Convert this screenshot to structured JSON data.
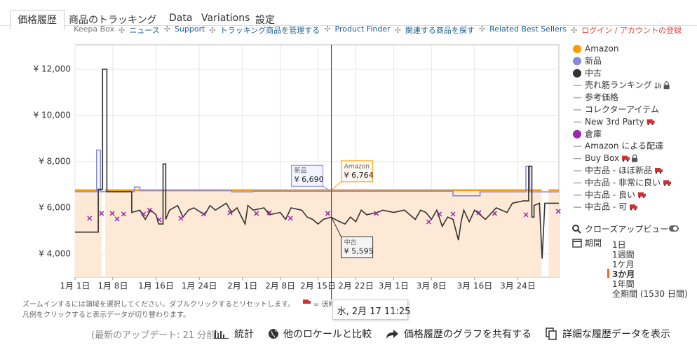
{
  "tabs": [
    "価格履歴",
    "商品のトラッキング",
    "Data",
    "Variations",
    "設定"
  ],
  "active_tab": 0,
  "nav_links": [
    "Keepa Box",
    "ニュース",
    "Support",
    "トラッキング商品を管理する",
    "Product Finder",
    "関連する商品を探す",
    "Related Best Sellers",
    "ログイン / アカウントの登録"
  ],
  "chart_data": {
    "type": "line",
    "xlim": [
      0,
      89.6
    ],
    "xticks": [
      {
        "value": 0,
        "label": "1月 1日"
      },
      {
        "value": 7,
        "label": "1月 8日"
      },
      {
        "value": 15,
        "label": "1月 16日"
      },
      {
        "value": 23,
        "label": "1月 24日"
      },
      {
        "value": 31,
        "label": "2月 1日"
      },
      {
        "value": 38,
        "label": "2月 8日"
      },
      {
        "value": 45,
        "label": "2月 15日"
      },
      {
        "value": 52,
        "label": "2月 22日"
      },
      {
        "value": 59,
        "label": "3月 1日"
      },
      {
        "value": 66,
        "label": "3月 8日"
      },
      {
        "value": 74,
        "label": "3月 16日"
      },
      {
        "value": 82,
        "label": "3月 24日"
      }
    ],
    "ylim": [
      3000,
      13060
    ],
    "yticks": [
      {
        "value": 4000,
        "label": "¥ 4,000"
      },
      {
        "value": 6000,
        "label": "¥ 6,000"
      },
      {
        "value": 8000,
        "label": "¥ 8,000"
      },
      {
        "value": 10000,
        "label": "¥ 10,000"
      },
      {
        "value": 12000,
        "label": "¥ 12,000"
      }
    ],
    "grid": true,
    "series": [
      {
        "name": "Amazon",
        "color": "#ff9900",
        "marker": "dot",
        "style": "line",
        "area": true,
        "area_color": "#fde9d5",
        "visible": true,
        "x": [
          0,
          4.9,
          5.2,
          5.6,
          86.4,
          87,
          87.7,
          89.6
        ],
        "values": [
          6764,
          6764,
          null,
          6764,
          6764,
          null,
          6764,
          6764
        ],
        "tooltip_value": 6764,
        "tooltip_label": "¥ 6,764"
      },
      {
        "name": "新品",
        "color": "#8888dd",
        "marker": "dot",
        "style": "line",
        "visible": true,
        "x": [
          0,
          4,
          4,
          4.7,
          4.7,
          11,
          11,
          12,
          12,
          29,
          29,
          33,
          33,
          70,
          70,
          75,
          75,
          83.5,
          83.5,
          84.2,
          84.2,
          89.6
        ],
        "values": [
          6700,
          6700,
          8500,
          8500,
          6700,
          6700,
          6900,
          6900,
          6740,
          6740,
          6690,
          6690,
          6720,
          6720,
          6520,
          6520,
          6690,
          6690,
          7800,
          7800,
          6690,
          6690
        ],
        "tooltip_value": 6690,
        "tooltip_label": "¥ 6,690"
      },
      {
        "name": "中古",
        "color": "#333333",
        "marker": "dot",
        "style": "line",
        "visible": true,
        "x": [
          0,
          4.3,
          4.3,
          5.1,
          5.1,
          5.9,
          5.9,
          10.5,
          10.5,
          12,
          13,
          14,
          15,
          15.5,
          16.3,
          16.3,
          16.8,
          16.8,
          17.5,
          19,
          20,
          21,
          22,
          24,
          25,
          26,
          28,
          29,
          30,
          31.5,
          32,
          33,
          35,
          36,
          38,
          39,
          40,
          42,
          43,
          44,
          45,
          46,
          47.4,
          49,
          50,
          51,
          52,
          53,
          54,
          56,
          57,
          59,
          61,
          62,
          63,
          64,
          65,
          66,
          67,
          68,
          69,
          70,
          71,
          71.5,
          72,
          73,
          74,
          76,
          78,
          80,
          81,
          83,
          84,
          84,
          84.6,
          84.6,
          85,
          85,
          86,
          86.5,
          87,
          89.6
        ],
        "values": [
          4950,
          4950,
          6800,
          6800,
          12000,
          12000,
          6700,
          6700,
          5800,
          5900,
          5500,
          5900,
          5700,
          5300,
          5300,
          7900,
          7900,
          5500,
          5900,
          6100,
          5600,
          5900,
          6000,
          5700,
          6100,
          5900,
          6200,
          5800,
          6000,
          5300,
          6100,
          5900,
          6000,
          5700,
          5800,
          5500,
          6000,
          5900,
          5600,
          5500,
          5300,
          5500,
          5595,
          5400,
          5300,
          5600,
          5400,
          5900,
          5700,
          5800,
          5900,
          5800,
          5900,
          5700,
          5500,
          5900,
          5800,
          5500,
          5900,
          5200,
          5600,
          5500,
          4600,
          5400,
          5900,
          5400,
          5900,
          5500,
          6000,
          5800,
          6200,
          6300,
          6300,
          7800,
          7800,
          5600,
          5600,
          6100,
          6200,
          3800,
          6200,
          6200
        ],
        "tooltip_value": 5595,
        "tooltip_label": "¥ 5,595"
      },
      {
        "name": "売れ筋ランキング",
        "marker": "line",
        "icons": [
          "sort",
          "lock"
        ],
        "visible": false
      },
      {
        "name": "参考価格",
        "marker": "line",
        "visible": false
      },
      {
        "name": "コレクターアイテム",
        "marker": "line",
        "visible": false
      },
      {
        "name": "New 3rd Party",
        "marker": "line",
        "icons": [
          "truck"
        ],
        "visible": false
      },
      {
        "name": "倉庫",
        "color": "#9c27b0",
        "marker": "dot",
        "style": "x-markers",
        "visible": true,
        "x": [
          2.7,
          4.9,
          6.9,
          7.8,
          9,
          12.7,
          13.8,
          15.6,
          19.6,
          23.8,
          28.7,
          33.6,
          36,
          39.9,
          46.8,
          55.8,
          65.5,
          67.5,
          70,
          74.8,
          77.7,
          83.5,
          89.5
        ],
        "values": [
          5550,
          5760,
          5760,
          5520,
          5730,
          5730,
          5900,
          5480,
          5550,
          5730,
          5790,
          5760,
          5790,
          5550,
          5760,
          5760,
          5390,
          5730,
          5730,
          5790,
          5760,
          5700,
          5850
        ]
      },
      {
        "name": "Amazon による配達",
        "marker": "line",
        "visible": false
      },
      {
        "name": "Buy Box",
        "marker": "line",
        "icons": [
          "truck",
          "lock"
        ],
        "visible": false
      },
      {
        "name": "中古品 - ほぼ新品",
        "marker": "line",
        "icons": [
          "truck"
        ],
        "visible": false
      },
      {
        "name": "中古品 - 非常に良い",
        "marker": "line",
        "icons": [
          "truck"
        ],
        "visible": false
      },
      {
        "name": "中古品 - 良い",
        "marker": "line",
        "icons": [
          "truck"
        ],
        "visible": false
      },
      {
        "name": "中古品 - 可",
        "marker": "line",
        "icons": [
          "truck"
        ],
        "visible": false
      }
    ],
    "tooltip": {
      "x": 47.475,
      "date_label": "水, 2月 17 11:25"
    }
  },
  "closeup": "クローズアップビュー",
  "period": {
    "label": "期間",
    "options": [
      "1日",
      "1週間",
      "1ケ月",
      "3か月",
      "1年間",
      "全期間 (1530 日間)"
    ],
    "active": 3
  },
  "notes": [
    "ズームインするには領域を選択してください。ダブルクリックするとリセットします。",
    "凡例をクリックすると表示データが切り替わります。"
  ],
  "shipping_note": "= 送料",
  "footer": {
    "update": "(最新のアップデート: 21 分前)",
    "actions": [
      "統計",
      "他のロケールと比較",
      "価格履歴のグラフを共有する",
      "詳細な履歴データを表示"
    ]
  }
}
